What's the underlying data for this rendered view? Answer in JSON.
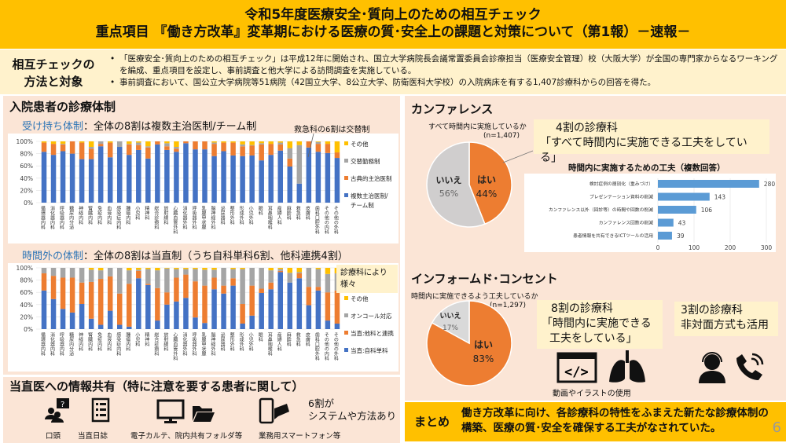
{
  "header": {
    "line1": "令和5年度医療安全･質向上のための相互チェック",
    "line2": "重点項目 『働き方改革』変革期における医療の質･安全上の課題と対策について（第1報）－速報－"
  },
  "intro": {
    "title_line1": "相互チェックの",
    "title_line2": "方法と対象",
    "bullets": [
      "「医療安全･質向上のための相互チェック」は平成12年に開始され、国立大学病院長会議常置委員会診療担当（医療安全管理）校（大阪大学）が全国の専門家からなるワーキングを編成、重点項目を設定し、事前調査と他大学による訪問調査を実施している。",
      "事前調査において、国公立大学病院等51病院（42国立大学、8公立大学、防衛医科大学校）の入院病床を有する1,407診療科からの回答を得た。"
    ]
  },
  "inpatient": {
    "heading": "入院患者の診療体制",
    "sub1_label": "受け持ち体制",
    "sub1_text": "：全体の8割は複数主治医制/チーム制",
    "annotation": "救急科の6割は交替制",
    "sub2_label": "時間外の体制",
    "sub2_text": "：全体の8割は当直制（うち自科単科6割、他科連携4割）",
    "sub2_callout": "診療科により様々"
  },
  "chart_data": [
    {
      "type": "bar",
      "stacked": true,
      "ylim": [
        0,
        100
      ],
      "yticks": [
        "0%",
        "20%",
        "40%",
        "60%",
        "80%",
        "100%"
      ],
      "grid": true,
      "legend": "right",
      "categories": [
        "循環器内科",
        "消化器内科",
        "呼吸器内科",
        "糖尿内分泌",
        "神経内科",
        "腎臓内科",
        "免疫内科",
        "血液内科",
        "感染症内科",
        "腫瘍内科",
        "小児科",
        "精神科",
        "総合診療科",
        "放射線科",
        "心臓血管外科",
        "消化器外科",
        "呼吸器外科",
        "乳腺甲状腺",
        "脳神経外科",
        "泌尿器科",
        "整形外科",
        "形成外科",
        "小児外科",
        "眼科",
        "耳鼻咽喉科",
        "産婦人科",
        "麻酔科",
        "救急科",
        "皮膚科",
        "歯科口腔外科",
        "その他の内科",
        "その他の外科"
      ],
      "series": [
        {
          "name": "複数主治医制/チーム制",
          "color": "#4472c4",
          "values": [
            83,
            78,
            84,
            80,
            71,
            71,
            92,
            74,
            91,
            78,
            86,
            72,
            95,
            86,
            83,
            97,
            87,
            87,
            76,
            84,
            77,
            76,
            77,
            69,
            78,
            85,
            59,
            31,
            90,
            83,
            81,
            73
          ]
        },
        {
          "name": "古典的主治医制",
          "color": "#ed7d31",
          "values": [
            15,
            18,
            11,
            20,
            27,
            17,
            4,
            24,
            0,
            17,
            8,
            18,
            5,
            6,
            5,
            3,
            13,
            13,
            20,
            14,
            21,
            16,
            16,
            26,
            18,
            10,
            13,
            0,
            10,
            13,
            15,
            9
          ]
        },
        {
          "name": "交替勤務制",
          "color": "#a5a5a5",
          "values": [
            0,
            0,
            1,
            0,
            0,
            3,
            4,
            0,
            9,
            1,
            4,
            2,
            0,
            5,
            3,
            0,
            0,
            0,
            2,
            0,
            0,
            3,
            1,
            2,
            0,
            3,
            17,
            63,
            0,
            3,
            0,
            0
          ]
        },
        {
          "name": "その他",
          "color": "#ffc000",
          "values": [
            2,
            4,
            4,
            0,
            2,
            9,
            0,
            2,
            0,
            4,
            2,
            8,
            0,
            3,
            9,
            0,
            0,
            0,
            2,
            2,
            2,
            5,
            6,
            3,
            4,
            2,
            11,
            6,
            0,
            1,
            4,
            18
          ]
        }
      ]
    },
    {
      "type": "bar",
      "stacked": true,
      "ylim": [
        0,
        100
      ],
      "yticks": [
        "0%",
        "20%",
        "40%",
        "60%",
        "80%",
        "100%"
      ],
      "grid": true,
      "legend": "right",
      "categories": [
        "循環器内科",
        "消化器内科",
        "呼吸器内科",
        "糖尿内分泌",
        "神経内科",
        "腎臓内科",
        "免疫内科",
        "血液内科",
        "感染症内科",
        "腫瘍内科",
        "小児科",
        "精神科",
        "総合診療科",
        "放射線科",
        "心臓血管外科",
        "消化器外科",
        "呼吸器外科",
        "乳腺甲状腺",
        "脳神経外科",
        "泌尿器科",
        "整形外科",
        "形成外科",
        "小児外科",
        "眼科",
        "耳鼻咽喉科",
        "産婦人科",
        "麻酔科",
        "救急科",
        "皮膚科",
        "歯科口腔外科",
        "その他の内科",
        "その他の外科"
      ],
      "series": [
        {
          "name": "当直:自科単科",
          "color": "#4472c4",
          "values": [
            63,
            49,
            33,
            27,
            41,
            17,
            7,
            30,
            7,
            4,
            83,
            72,
            14,
            40,
            45,
            51,
            19,
            10,
            65,
            58,
            71,
            9,
            22,
            59,
            65,
            93,
            76,
            83,
            39,
            63,
            14,
            9
          ]
        },
        {
          "name": "当直:他科と連携",
          "color": "#ed7d31",
          "values": [
            28,
            38,
            51,
            57,
            35,
            60,
            75,
            56,
            51,
            70,
            12,
            2,
            53,
            20,
            39,
            38,
            59,
            61,
            19,
            13,
            12,
            32,
            49,
            7,
            11,
            2,
            0,
            8,
            30,
            6,
            46,
            54
          ]
        },
        {
          "name": "オンコール対応",
          "color": "#a5a5a5",
          "values": [
            9,
            13,
            16,
            16,
            24,
            20,
            14,
            14,
            42,
            22,
            2,
            24,
            29,
            39,
            14,
            9,
            20,
            26,
            13,
            29,
            15,
            57,
            29,
            34,
            20,
            3,
            16,
            2,
            31,
            29,
            30,
            28
          ]
        },
        {
          "name": "その他",
          "color": "#ffc000",
          "values": [
            0,
            0,
            0,
            0,
            0,
            3,
            4,
            0,
            0,
            4,
            3,
            2,
            4,
            1,
            2,
            2,
            2,
            3,
            3,
            0,
            2,
            2,
            0,
            0,
            4,
            2,
            8,
            7,
            0,
            2,
            10,
            9
          ]
        }
      ]
    },
    {
      "type": "pie",
      "title": "すべて時間内に実施しているか",
      "n": "(n=1,407)",
      "slices": [
        {
          "label": "はい",
          "value": 44,
          "display": "44%",
          "color": "#ed7d31"
        },
        {
          "label": "いいえ",
          "value": 56,
          "display": "56%",
          "color": "#d0cece"
        }
      ]
    },
    {
      "type": "bar",
      "orientation": "horizontal",
      "title": "時間内に実施するための工夫（複数回答）",
      "xlim": [
        0,
        300
      ],
      "xticks": [
        "0",
        "100",
        "200",
        "300"
      ],
      "grid": true,
      "categories": [
        "検討症例の層別化（重みづけ）",
        "プレゼンテーション資料の削減",
        "カンファレンス以外（回診等）の時間や回数の削減",
        "カンファレンス回数の削減",
        "患者情報を共有できるICTツールの活用"
      ],
      "values": [
        280,
        143,
        106,
        43,
        39
      ],
      "color": "#5b9bd5"
    },
    {
      "type": "pie",
      "title": "時間内に実施できるよう工夫しているか",
      "n": "(n=1,297)",
      "slices": [
        {
          "label": "はい",
          "value": 83,
          "display": "83%",
          "color": "#ed7d31"
        },
        {
          "label": "いいえ",
          "value": 17,
          "display": "17%",
          "color": "#d9d9d9"
        }
      ]
    }
  ],
  "handover": {
    "heading": "当直医への情報共有（特に注意を要する患者に関して）",
    "items": [
      {
        "label": "口頭",
        "icon": "people-question-icon"
      },
      {
        "label": "当直日誌",
        "icon": "checklist-icon"
      },
      {
        "label": "電子カルテ、院内共有フォルダ等",
        "icon": "monitor-folder-icon"
      },
      {
        "label": "業務用スマートフォン等",
        "icon": "smartphone-icon"
      }
    ],
    "note_line1": "6割が",
    "note_line2": "システムや方法あり"
  },
  "conference": {
    "heading": "カンファレンス",
    "callout_line1": "4割の診療科",
    "callout_line2": "「すべて時間内に実施できる工夫をしている」"
  },
  "ic": {
    "heading": "インフォームド･コンセント",
    "callout_line1": "8割の診療科",
    "callout_line2": "「時間内に実施できる",
    "callout_line3": "工夫をしている」",
    "media_label": "動画やイラストの使用",
    "remote_line1": "3割の診療科",
    "remote_line2": "非対面方式も活用"
  },
  "summary": {
    "label": "まとめ",
    "line1": "働き方改革に向け、各診療科の特性をふまえた新たな診療体制の",
    "line2": "構築、医療の質･安全を確保する工夫がなされていた。"
  },
  "page_number": "6"
}
